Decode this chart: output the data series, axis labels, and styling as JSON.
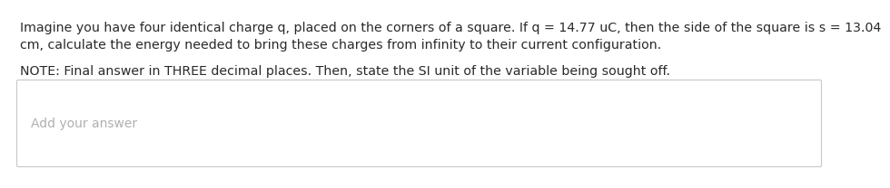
{
  "line1": "Imagine you have four identical charge q, placed on the corners of a square. If q = 14.77 uC, then the side of the square is s = 13.04",
  "line2": "cm, calculate the energy needed to bring these charges from infinity to their current configuration.",
  "line3": "NOTE: Final answer in THREE decimal places. Then, state the SI unit of the variable being sought off.",
  "placeholder": "Add your answer",
  "bg_color": "#ffffff",
  "text_color": "#2a2a2a",
  "placeholder_color": "#b0b0b0",
  "box_edge_color": "#c8c8c8",
  "main_fontsize": 10.2,
  "note_fontsize": 10.2,
  "placeholder_fontsize": 10.0
}
